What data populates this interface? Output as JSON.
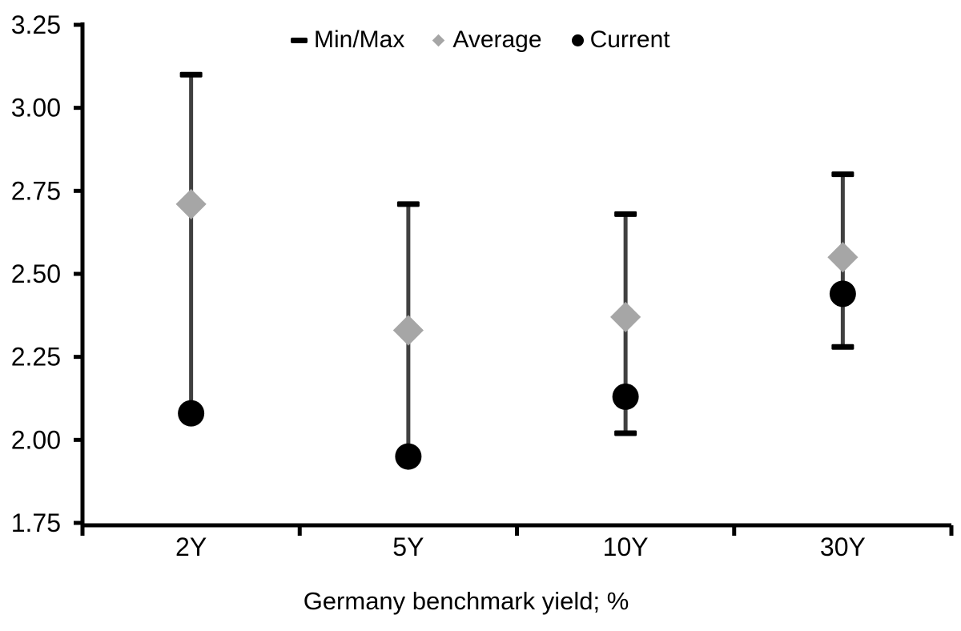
{
  "chart_data": {
    "type": "scatter",
    "subtype": "min-max-range-with-average-and-current",
    "title": "",
    "xlabel": "Germany benchmark yield; %",
    "ylabel": "",
    "categories": [
      "2Y",
      "5Y",
      "10Y",
      "30Y"
    ],
    "series": [
      {
        "name": "Min/Max",
        "marker": "dash",
        "color": "#000000",
        "max": [
          3.1,
          2.71,
          2.68,
          2.8
        ],
        "min": [
          2.08,
          1.95,
          2.02,
          2.28
        ]
      },
      {
        "name": "Average",
        "marker": "diamond",
        "color": "#a6a6a6",
        "values": [
          2.71,
          2.33,
          2.37,
          2.55
        ]
      },
      {
        "name": "Current",
        "marker": "circle",
        "color": "#000000",
        "values": [
          2.08,
          1.95,
          2.13,
          2.44
        ]
      }
    ],
    "ylim": [
      1.75,
      3.25
    ],
    "ytick_step": 0.25,
    "ytick_labels": [
      "3.25",
      "3.00",
      "2.75",
      "2.50",
      "2.25",
      "2.00",
      "1.75"
    ],
    "legend_position": "top-center",
    "grid": false,
    "range_line_color": "#404040",
    "axis_color": "#000000"
  }
}
